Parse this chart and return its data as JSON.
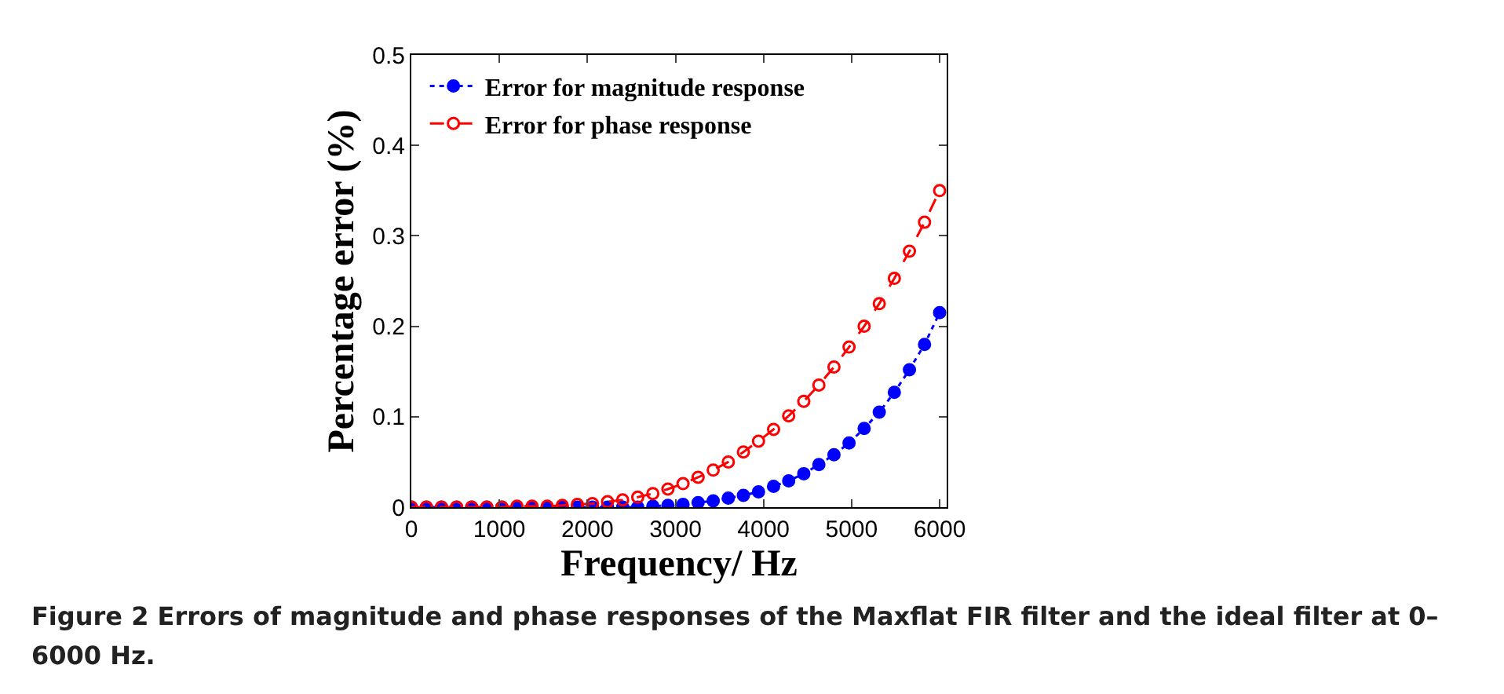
{
  "chart_data": {
    "type": "line",
    "xlabel": "Frequency/ Hz",
    "ylabel": "Percentage error (%)",
    "x": [
      0,
      171.4,
      342.9,
      514.3,
      685.7,
      857.1,
      1028.6,
      1200,
      1371.4,
      1542.9,
      1714.3,
      1885.7,
      2057.1,
      2228.6,
      2400,
      2571.4,
      2742.9,
      2914.3,
      3085.7,
      3257.1,
      3428.6,
      3600,
      3771.4,
      3942.9,
      4114.3,
      4285.7,
      4457.1,
      4628.6,
      4800,
      4971.4,
      5142.9,
      5314.3,
      5485.7,
      5657.1,
      5828.6,
      6000
    ],
    "series": [
      {
        "name": "Error for magnitude response",
        "color": "#0000ff",
        "marker": "circle",
        "line_style": "dotted",
        "values": [
          0,
          0,
          0,
          0,
          0,
          0,
          0,
          0,
          0,
          0,
          0,
          0,
          0,
          0,
          0,
          0,
          0.001,
          0.002,
          0.003,
          0.005,
          0.007,
          0.01,
          0.013,
          0.017,
          0.023,
          0.029,
          0.037,
          0.047,
          0.058,
          0.071,
          0.087,
          0.105,
          0.127,
          0.152,
          0.18,
          0.215
        ]
      },
      {
        "name": "Error for phase response",
        "color": "#ff0000",
        "marker": "circle-open",
        "line_style": "dashed",
        "values": [
          0,
          0,
          0,
          0,
          0,
          0,
          0,
          0.001,
          0.001,
          0.001,
          0.002,
          0.003,
          0.004,
          0.006,
          0.008,
          0.011,
          0.015,
          0.02,
          0.026,
          0.033,
          0.041,
          0.05,
          0.061,
          0.073,
          0.086,
          0.101,
          0.117,
          0.135,
          0.155,
          0.177,
          0.2,
          0.225,
          0.253,
          0.283,
          0.315,
          0.35
        ]
      }
    ],
    "xlim": [
      0,
      6080
    ],
    "xticks": [
      0,
      1000,
      2000,
      3000,
      4000,
      5000,
      6000
    ],
    "ylim": [
      0,
      0.5
    ],
    "yticks": [
      0,
      0.1,
      0.2,
      0.3,
      0.4,
      0.5
    ],
    "grid": false,
    "legend": "top left",
    "annotations": [
      "Figure 2 Errors of magnitude and phase responses of the Maxflat FIR filter and the ideal filter at 0–6000 Hz."
    ]
  }
}
